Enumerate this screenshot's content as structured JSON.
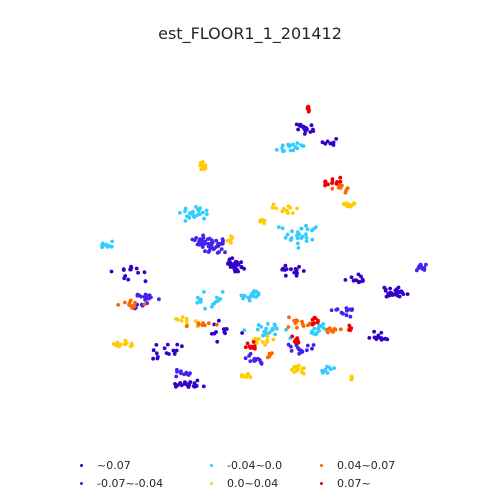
{
  "chart_data": {
    "type": "scatter",
    "title": "est_FLOOR1_1_201412",
    "xlabel": "",
    "ylabel": "",
    "axes_visible": false,
    "grid": false,
    "legend_placement": "bottom",
    "series": [
      {
        "name": "~0.07",
        "color": "#3300cc",
        "clusters": [
          [
            128,
            272,
            60,
            24,
            14
          ],
          [
            165,
            350,
            55,
            30,
            16
          ],
          [
            190,
            385,
            40,
            16,
            24
          ],
          [
            305,
            130,
            25,
            14,
            18
          ],
          [
            330,
            143,
            30,
            12,
            8
          ],
          [
            290,
            270,
            45,
            22,
            14
          ],
          [
            355,
            278,
            28,
            16,
            12
          ],
          [
            395,
            292,
            40,
            18,
            26
          ],
          [
            235,
            265,
            25,
            20,
            30
          ],
          [
            220,
            330,
            55,
            28,
            12
          ],
          [
            380,
            338,
            30,
            16,
            14
          ]
        ]
      },
      {
        "name": "-0.07~-0.04",
        "color": "#4422ee",
        "clusters": [
          [
            142,
            300,
            45,
            28,
            20
          ],
          [
            215,
            245,
            35,
            22,
            30
          ],
          [
            300,
            350,
            45,
            22,
            16
          ],
          [
            255,
            360,
            35,
            16,
            14
          ],
          [
            345,
            312,
            35,
            16,
            12
          ],
          [
            420,
            268,
            18,
            14,
            10
          ],
          [
            180,
            375,
            25,
            14,
            10
          ],
          [
            200,
            242,
            25,
            18,
            18
          ]
        ]
      },
      {
        "name": "-0.04~0.0",
        "color": "#33ccff",
        "clusters": [
          [
            195,
            215,
            45,
            28,
            22
          ],
          [
            300,
            235,
            55,
            32,
            28
          ],
          [
            105,
            245,
            22,
            10,
            10
          ],
          [
            265,
            330,
            55,
            22,
            22
          ],
          [
            215,
            300,
            45,
            22,
            16
          ],
          [
            290,
            148,
            35,
            16,
            16
          ],
          [
            250,
            295,
            25,
            20,
            20
          ],
          [
            320,
            330,
            35,
            20,
            14
          ],
          [
            325,
            370,
            25,
            14,
            10
          ]
        ]
      },
      {
        "name": "0.0~0.04",
        "color": "#ffcc00",
        "clusters": [
          [
            203,
            165,
            10,
            14,
            12
          ],
          [
            285,
            210,
            45,
            16,
            12
          ],
          [
            128,
            345,
            45,
            10,
            14
          ],
          [
            188,
            322,
            35,
            14,
            10
          ],
          [
            262,
            340,
            35,
            14,
            12
          ],
          [
            300,
            370,
            25,
            16,
            14
          ],
          [
            350,
            205,
            18,
            8,
            14
          ],
          [
            353,
            378,
            10,
            8,
            4
          ],
          [
            245,
            375,
            25,
            10,
            8
          ],
          [
            262,
            222,
            10,
            10,
            8
          ],
          [
            230,
            240,
            12,
            14,
            6
          ]
        ]
      },
      {
        "name": "0.04~0.07",
        "color": "#ff6600",
        "clusters": [
          [
            128,
            305,
            45,
            12,
            12
          ],
          [
            205,
            325,
            40,
            10,
            8
          ],
          [
            300,
            323,
            35,
            16,
            14
          ],
          [
            332,
            330,
            22,
            14,
            10
          ],
          [
            340,
            188,
            30,
            14,
            10
          ],
          [
            270,
            355,
            15,
            12,
            6
          ]
        ]
      },
      {
        "name": "0.07~",
        "color": "#ee0000",
        "clusters": [
          [
            308,
            108,
            10,
            8,
            6
          ],
          [
            330,
            182,
            30,
            12,
            14
          ],
          [
            252,
            345,
            18,
            14,
            10
          ],
          [
            296,
            340,
            14,
            12,
            8
          ],
          [
            315,
            320,
            12,
            14,
            8
          ],
          [
            350,
            327,
            10,
            10,
            6
          ]
        ]
      }
    ]
  },
  "legend": {
    "items": [
      {
        "label": "~0.07",
        "color": "#3300cc"
      },
      {
        "label": "-0.04~0.0",
        "color": "#33ccff"
      },
      {
        "label": "0.04~0.07",
        "color": "#ff6600"
      },
      {
        "label": "-0.07~-0.04",
        "color": "#4422ee"
      },
      {
        "label": "0.0~0.04",
        "color": "#ffcc00"
      },
      {
        "label": "0.07~",
        "color": "#ee0000"
      }
    ]
  }
}
